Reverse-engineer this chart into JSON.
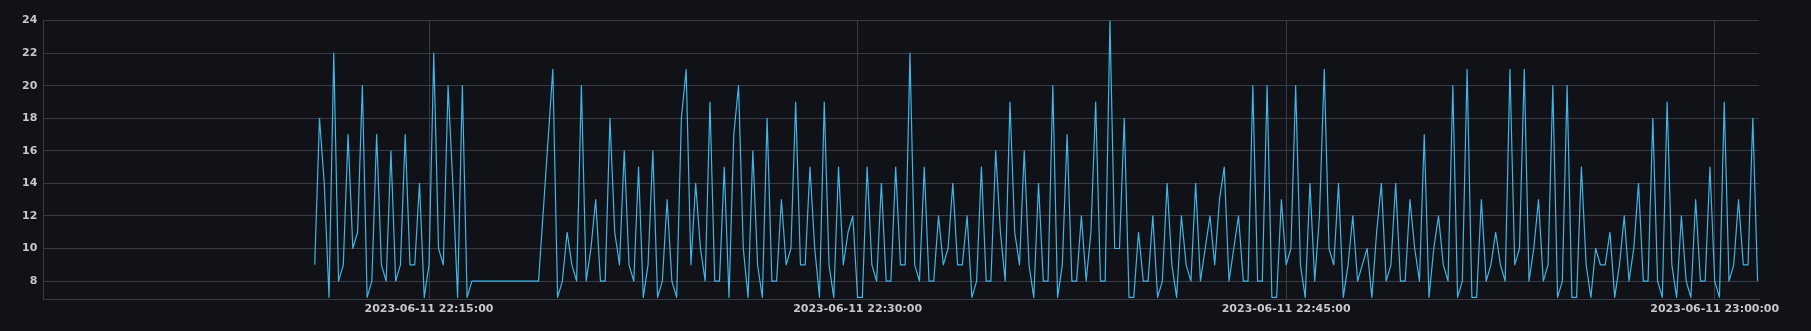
{
  "chart_data": {
    "type": "line",
    "xlim": [
      "2023-06-11T22:01:30",
      "2023-06-11T23:01:33"
    ],
    "xticks": [
      {
        "value": "2023-06-11T22:15:00",
        "label": "2023-06-11 22:15:00"
      },
      {
        "value": "2023-06-11T22:30:00",
        "label": "2023-06-11 22:30:00"
      },
      {
        "value": "2023-06-11T22:45:00",
        "label": "2023-06-11 22:45:00"
      },
      {
        "value": "2023-06-11T23:00:00",
        "label": "2023-06-11 23:00:00"
      }
    ],
    "ylim": [
      6.85,
      24
    ],
    "yticks": [
      8,
      10,
      12,
      14,
      16,
      18,
      20,
      22,
      24
    ],
    "grid": true,
    "series": [
      {
        "color": "#3fb6e8",
        "x": [
          "2023-06-11T22:11:00",
          "2023-06-11T22:11:10",
          "2023-06-11T22:11:20",
          "2023-06-11T22:11:30",
          "2023-06-11T22:11:40",
          "2023-06-11T22:11:50",
          "2023-06-11T22:12:00",
          "2023-06-11T22:12:10",
          "2023-06-11T22:12:20",
          "2023-06-11T22:12:30",
          "2023-06-11T22:12:40",
          "2023-06-11T22:12:50",
          "2023-06-11T22:13:00",
          "2023-06-11T22:13:10",
          "2023-06-11T22:13:20",
          "2023-06-11T22:13:30",
          "2023-06-11T22:13:40",
          "2023-06-11T22:13:50",
          "2023-06-11T22:14:00",
          "2023-06-11T22:14:10",
          "2023-06-11T22:14:20",
          "2023-06-11T22:14:30",
          "2023-06-11T22:14:40",
          "2023-06-11T22:14:50",
          "2023-06-11T22:15:00",
          "2023-06-11T22:15:10",
          "2023-06-11T22:15:20",
          "2023-06-11T22:15:30",
          "2023-06-11T22:15:40",
          "2023-06-11T22:15:50",
          "2023-06-11T22:16:00",
          "2023-06-11T22:16:10",
          "2023-06-11T22:16:20",
          "2023-06-11T22:16:30",
          "2023-06-11T22:18:50",
          "2023-06-11T22:19:20",
          "2023-06-11T22:19:30",
          "2023-06-11T22:19:40",
          "2023-06-11T22:19:50",
          "2023-06-11T22:20:00",
          "2023-06-11T22:20:10",
          "2023-06-11T22:20:20",
          "2023-06-11T22:20:30",
          "2023-06-11T22:20:40",
          "2023-06-11T22:20:50",
          "2023-06-11T22:21:00",
          "2023-06-11T22:21:10",
          "2023-06-11T22:21:20",
          "2023-06-11T22:21:30",
          "2023-06-11T22:21:40",
          "2023-06-11T22:21:50",
          "2023-06-11T22:22:00",
          "2023-06-11T22:22:10",
          "2023-06-11T22:22:20",
          "2023-06-11T22:22:30",
          "2023-06-11T22:22:40",
          "2023-06-11T22:22:50",
          "2023-06-11T22:23:00",
          "2023-06-11T22:23:10",
          "2023-06-11T22:23:20",
          "2023-06-11T22:23:30",
          "2023-06-11T22:23:40",
          "2023-06-11T22:23:50",
          "2023-06-11T22:24:00",
          "2023-06-11T22:24:10",
          "2023-06-11T22:24:20",
          "2023-06-11T22:24:30",
          "2023-06-11T22:24:40",
          "2023-06-11T22:24:50",
          "2023-06-11T22:25:00",
          "2023-06-11T22:25:10",
          "2023-06-11T22:25:20",
          "2023-06-11T22:25:30",
          "2023-06-11T22:25:40",
          "2023-06-11T22:25:50",
          "2023-06-11T22:26:00",
          "2023-06-11T22:26:10",
          "2023-06-11T22:26:20",
          "2023-06-11T22:26:30",
          "2023-06-11T22:26:40",
          "2023-06-11T22:26:50",
          "2023-06-11T22:27:00",
          "2023-06-11T22:27:10",
          "2023-06-11T22:27:20",
          "2023-06-11T22:27:30",
          "2023-06-11T22:27:40",
          "2023-06-11T22:27:50",
          "2023-06-11T22:28:00",
          "2023-06-11T22:28:10",
          "2023-06-11T22:28:20",
          "2023-06-11T22:28:30",
          "2023-06-11T22:28:40",
          "2023-06-11T22:28:50",
          "2023-06-11T22:29:00",
          "2023-06-11T22:29:10",
          "2023-06-11T22:29:20",
          "2023-06-11T22:29:30",
          "2023-06-11T22:29:40",
          "2023-06-11T22:29:50",
          "2023-06-11T22:30:00",
          "2023-06-11T22:30:10",
          "2023-06-11T22:30:20",
          "2023-06-11T22:30:30",
          "2023-06-11T22:30:40",
          "2023-06-11T22:30:50",
          "2023-06-11T22:31:00",
          "2023-06-11T22:31:10",
          "2023-06-11T22:31:20",
          "2023-06-11T22:31:30",
          "2023-06-11T22:31:40",
          "2023-06-11T22:31:50",
          "2023-06-11T22:32:00",
          "2023-06-11T22:32:10",
          "2023-06-11T22:32:20",
          "2023-06-11T22:32:30",
          "2023-06-11T22:32:40",
          "2023-06-11T22:32:50",
          "2023-06-11T22:33:00",
          "2023-06-11T22:33:10",
          "2023-06-11T22:33:20",
          "2023-06-11T22:33:30",
          "2023-06-11T22:33:40",
          "2023-06-11T22:33:50",
          "2023-06-11T22:34:00",
          "2023-06-11T22:34:10",
          "2023-06-11T22:34:20",
          "2023-06-11T22:34:30",
          "2023-06-11T22:34:40",
          "2023-06-11T22:34:50",
          "2023-06-11T22:35:00",
          "2023-06-11T22:35:10",
          "2023-06-11T22:35:20",
          "2023-06-11T22:35:30",
          "2023-06-11T22:35:40",
          "2023-06-11T22:35:50",
          "2023-06-11T22:36:00",
          "2023-06-11T22:36:10",
          "2023-06-11T22:36:20",
          "2023-06-11T22:36:30",
          "2023-06-11T22:36:40",
          "2023-06-11T22:36:50",
          "2023-06-11T22:37:00",
          "2023-06-11T22:37:10",
          "2023-06-11T22:37:20",
          "2023-06-11T22:37:30",
          "2023-06-11T22:37:40",
          "2023-06-11T22:37:50",
          "2023-06-11T22:38:00",
          "2023-06-11T22:38:10",
          "2023-06-11T22:38:20",
          "2023-06-11T22:38:30",
          "2023-06-11T22:38:40",
          "2023-06-11T22:38:50",
          "2023-06-11T22:39:00",
          "2023-06-11T22:39:10",
          "2023-06-11T22:39:20",
          "2023-06-11T22:39:30",
          "2023-06-11T22:39:40",
          "2023-06-11T22:39:50",
          "2023-06-11T22:40:00",
          "2023-06-11T22:40:10",
          "2023-06-11T22:40:20",
          "2023-06-11T22:40:30",
          "2023-06-11T22:40:40",
          "2023-06-11T22:40:50",
          "2023-06-11T22:41:00",
          "2023-06-11T22:41:10",
          "2023-06-11T22:41:20",
          "2023-06-11T22:41:30",
          "2023-06-11T22:41:40",
          "2023-06-11T22:41:50",
          "2023-06-11T22:42:00",
          "2023-06-11T22:42:10",
          "2023-06-11T22:42:20",
          "2023-06-11T22:42:30",
          "2023-06-11T22:42:40",
          "2023-06-11T22:42:50",
          "2023-06-11T22:43:00",
          "2023-06-11T22:43:10",
          "2023-06-11T22:43:20",
          "2023-06-11T22:43:30",
          "2023-06-11T22:43:40",
          "2023-06-11T22:43:50",
          "2023-06-11T22:44:00",
          "2023-06-11T22:44:10",
          "2023-06-11T22:44:20",
          "2023-06-11T22:44:30",
          "2023-06-11T22:44:40",
          "2023-06-11T22:44:50",
          "2023-06-11T22:45:00",
          "2023-06-11T22:45:10",
          "2023-06-11T22:45:20",
          "2023-06-11T22:45:30",
          "2023-06-11T22:45:40",
          "2023-06-11T22:45:50",
          "2023-06-11T22:46:00",
          "2023-06-11T22:46:10",
          "2023-06-11T22:46:20",
          "2023-06-11T22:46:30",
          "2023-06-11T22:46:40",
          "2023-06-11T22:46:50",
          "2023-06-11T22:47:00",
          "2023-06-11T22:47:10",
          "2023-06-11T22:47:20",
          "2023-06-11T22:47:30",
          "2023-06-11T22:47:40",
          "2023-06-11T22:47:50",
          "2023-06-11T22:48:00",
          "2023-06-11T22:48:10",
          "2023-06-11T22:48:20",
          "2023-06-11T22:48:30",
          "2023-06-11T22:48:40",
          "2023-06-11T22:48:50",
          "2023-06-11T22:49:00",
          "2023-06-11T22:49:10",
          "2023-06-11T22:49:20",
          "2023-06-11T22:49:30",
          "2023-06-11T22:49:40",
          "2023-06-11T22:49:50",
          "2023-06-11T22:50:00",
          "2023-06-11T22:50:10",
          "2023-06-11T22:50:20",
          "2023-06-11T22:50:30",
          "2023-06-11T22:50:40",
          "2023-06-11T22:50:50",
          "2023-06-11T22:51:00",
          "2023-06-11T22:51:10",
          "2023-06-11T22:51:20",
          "2023-06-11T22:51:30",
          "2023-06-11T22:51:40",
          "2023-06-11T22:51:50",
          "2023-06-11T22:52:00",
          "2023-06-11T22:52:10",
          "2023-06-11T22:52:20",
          "2023-06-11T22:52:30",
          "2023-06-11T22:52:40",
          "2023-06-11T22:52:50",
          "2023-06-11T22:53:00",
          "2023-06-11T22:53:10",
          "2023-06-11T22:53:20",
          "2023-06-11T22:53:30",
          "2023-06-11T22:53:40",
          "2023-06-11T22:53:50",
          "2023-06-11T22:54:00",
          "2023-06-11T22:54:10",
          "2023-06-11T22:54:20",
          "2023-06-11T22:54:30",
          "2023-06-11T22:54:40",
          "2023-06-11T22:54:50",
          "2023-06-11T22:55:00",
          "2023-06-11T22:55:10",
          "2023-06-11T22:55:20",
          "2023-06-11T22:55:30",
          "2023-06-11T22:55:40",
          "2023-06-11T22:55:50",
          "2023-06-11T22:56:00",
          "2023-06-11T22:56:10",
          "2023-06-11T22:56:20",
          "2023-06-11T22:56:30",
          "2023-06-11T22:56:40",
          "2023-06-11T22:56:50",
          "2023-06-11T22:57:00",
          "2023-06-11T22:57:10",
          "2023-06-11T22:57:20",
          "2023-06-11T22:57:30",
          "2023-06-11T22:57:40",
          "2023-06-11T22:57:50",
          "2023-06-11T22:58:00",
          "2023-06-11T22:58:10",
          "2023-06-11T22:58:20",
          "2023-06-11T22:58:30",
          "2023-06-11T22:58:40",
          "2023-06-11T22:58:50",
          "2023-06-11T22:59:00",
          "2023-06-11T22:59:10",
          "2023-06-11T22:59:20",
          "2023-06-11T22:59:30",
          "2023-06-11T22:59:40",
          "2023-06-11T22:59:50",
          "2023-06-11T23:00:00",
          "2023-06-11T23:00:10",
          "2023-06-11T23:00:20",
          "2023-06-11T23:00:30",
          "2023-06-11T23:00:40",
          "2023-06-11T23:00:50",
          "2023-06-11T23:01:00",
          "2023-06-11T23:01:10",
          "2023-06-11T23:01:20",
          "2023-06-11T23:01:30"
        ],
        "values": [
          9,
          18,
          14,
          7,
          22,
          8,
          9,
          17,
          10,
          11,
          20,
          7,
          8,
          17,
          9,
          8,
          16,
          8,
          9,
          17,
          9,
          9,
          14,
          7,
          9,
          22,
          10,
          9,
          20,
          14,
          7,
          20,
          7,
          8,
          8,
          21,
          7,
          8,
          11,
          9,
          8,
          20,
          8,
          10,
          13,
          8,
          8,
          18,
          11,
          9,
          16,
          9,
          8,
          15,
          7,
          9,
          16,
          7,
          8,
          13,
          8,
          7,
          18,
          21,
          9,
          14,
          10,
          8,
          19,
          8,
          8,
          15,
          7,
          17,
          20,
          10,
          7,
          16,
          9,
          7,
          18,
          8,
          8,
          13,
          9,
          10,
          19,
          9,
          9,
          15,
          10,
          7,
          19,
          9,
          7,
          15,
          9,
          11,
          12,
          7,
          7,
          15,
          9,
          8,
          14,
          8,
          8,
          15,
          9,
          9,
          22,
          9,
          8,
          15,
          8,
          8,
          12,
          9,
          10,
          14,
          9,
          9,
          12,
          7,
          8,
          15,
          8,
          8,
          16,
          11,
          8,
          19,
          11,
          9,
          16,
          9,
          7,
          14,
          8,
          8,
          20,
          7,
          9,
          17,
          8,
          8,
          12,
          8,
          11,
          19,
          8,
          8,
          24,
          10,
          10,
          18,
          7,
          7,
          11,
          8,
          8,
          12,
          7,
          8,
          14,
          9,
          7,
          12,
          9,
          8,
          14,
          8,
          10,
          12,
          9,
          13,
          15,
          8,
          10,
          12,
          8,
          8,
          20,
          8,
          8,
          20,
          7,
          7,
          13,
          9,
          10,
          20,
          9,
          7,
          14,
          8,
          12,
          21,
          10,
          9,
          14,
          7,
          9,
          12,
          8,
          9,
          10,
          7,
          11,
          14,
          8,
          9,
          14,
          8,
          8,
          13,
          10,
          8,
          17,
          7,
          10,
          12,
          9,
          8,
          20,
          7,
          8,
          21,
          7,
          7,
          13,
          8,
          9,
          11,
          9,
          8,
          21,
          9,
          10,
          21,
          8,
          10,
          13,
          8,
          9,
          20,
          7,
          8,
          20,
          7,
          7,
          15,
          9,
          7,
          10,
          9,
          9,
          11,
          7,
          9,
          12,
          8,
          10,
          14,
          8,
          8,
          18,
          8,
          7,
          19,
          9,
          7,
          12,
          8,
          7,
          13,
          8,
          8,
          15,
          8,
          7,
          19,
          8,
          9,
          13,
          9,
          9,
          18,
          8
        ]
      }
    ]
  }
}
